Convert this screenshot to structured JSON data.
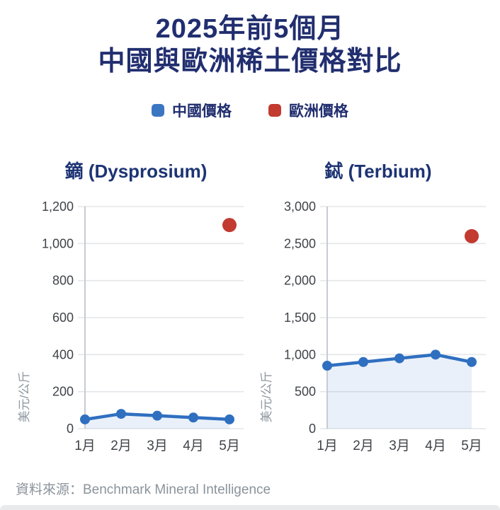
{
  "title": {
    "line1": "2025年前5個月",
    "line2": "中國與歐洲稀土價格對比"
  },
  "legend": [
    {
      "label": "中國價格",
      "color": "#3b76c3"
    },
    {
      "label": "歐洲價格",
      "color": "#c23a30"
    }
  ],
  "colors": {
    "china_line": "#2f6fc0",
    "europe_dot": "#c23a30",
    "navy_text": "#212e6f",
    "grid": "#e4e6e9",
    "axis": "#c7ccd1",
    "tick_text": "#3f4348",
    "axis_label_text": "#90989f",
    "area_fill": "rgba(47,111,192,0.10)"
  },
  "chart_data": [
    {
      "type": "line",
      "title": "鏑 (Dysprosium)",
      "categories": [
        "1月",
        "2月",
        "3月",
        "4月",
        "5月"
      ],
      "series": [
        {
          "name": "中國價格",
          "type": "line",
          "values": [
            50,
            80,
            70,
            60,
            50
          ]
        },
        {
          "name": "歐洲價格",
          "type": "scatter",
          "points": [
            {
              "x": "5月",
              "y": 1100
            }
          ]
        }
      ],
      "xlabel": "",
      "ylabel": "美元/公斤",
      "ylim": [
        0,
        1200
      ],
      "ytick_step": 200,
      "yticks": [
        "1,200",
        "1,000",
        "800",
        "600",
        "400",
        "200",
        "0"
      ],
      "grid": true,
      "legend_position": "top"
    },
    {
      "type": "line",
      "title": "鋱 (Terbium)",
      "categories": [
        "1月",
        "2月",
        "3月",
        "4月",
        "5月"
      ],
      "series": [
        {
          "name": "中國價格",
          "type": "line",
          "values": [
            850,
            900,
            950,
            1000,
            900
          ]
        },
        {
          "name": "歐洲價格",
          "type": "scatter",
          "points": [
            {
              "x": "5月",
              "y": 2600
            }
          ]
        }
      ],
      "xlabel": "",
      "ylabel": "美元/公斤",
      "ylim": [
        0,
        3000
      ],
      "ytick_step": 500,
      "yticks": [
        "3,000",
        "2,500",
        "2,000",
        "1,500",
        "1,000",
        "500",
        "0"
      ],
      "grid": true,
      "legend_position": "top"
    }
  ],
  "footer": {
    "source": "資料來源：Benchmark Mineral Intelligence"
  }
}
